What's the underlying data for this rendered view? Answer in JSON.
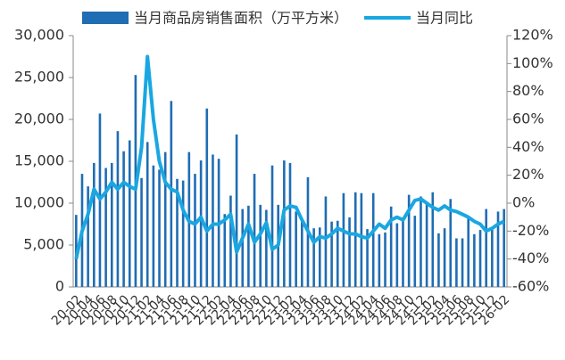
{
  "chart_data": {
    "type": "bar",
    "categories": [
      "20-02",
      null,
      "20-04",
      null,
      "20-06",
      null,
      "20-08",
      null,
      "20-10",
      null,
      "20-12",
      null,
      "21-02",
      null,
      "21-04",
      null,
      "21-06",
      null,
      "21-08",
      null,
      "21-10",
      null,
      "21-12",
      null,
      "22-02",
      null,
      "22-04",
      null,
      "22-06",
      null,
      "22-08",
      null,
      "22-10",
      null,
      "22-12",
      null,
      "23-02",
      null,
      "23-04",
      null,
      "23-06",
      null,
      "23-08",
      null,
      "23-10",
      null,
      "23-12",
      null,
      "24-02",
      null,
      "24-04",
      null,
      "24-06",
      null,
      "24-08",
      null,
      "24-10",
      null,
      "24-12",
      null,
      "25-02",
      null,
      "25-04",
      null,
      "25-06",
      null,
      "25-08",
      null,
      "25-10",
      null,
      "25-12",
      null,
      "26-02"
    ],
    "series": [
      {
        "name": "当月商品房销售面积（万平方米）",
        "type": "bar",
        "color": "#1f6db3",
        "values": [
          8600,
          13500,
          12000,
          14800,
          20700,
          14200,
          14800,
          18600,
          16200,
          17500,
          25300,
          13000,
          17300,
          14500,
          14000,
          16100,
          22200,
          12900,
          12700,
          16100,
          13500,
          15100,
          21300,
          15800,
          15300,
          8700,
          10900,
          18200,
          9300,
          9700,
          13500,
          9800,
          9200,
          14500,
          9800,
          15100,
          14800,
          9000,
          8200,
          13100,
          7000,
          7100,
          10800,
          7800,
          7900,
          11200,
          8300,
          11300,
          11200,
          6900,
          11200,
          6300,
          6500,
          9600,
          7600,
          8100,
          11000,
          8500,
          10800,
          10200,
          11300,
          6400,
          7000,
          10500,
          5800,
          5800,
          8500,
          6300,
          6800,
          9300,
          7000,
          9000,
          9300
        ]
      },
      {
        "name": "当月同比",
        "type": "line",
        "axis": "y2",
        "color": "#1aa7e1",
        "values": [
          -40,
          -20,
          -8,
          10,
          3,
          8,
          15,
          10,
          15,
          12,
          10,
          40,
          105,
          60,
          30,
          15,
          10,
          8,
          -5,
          -13,
          -15,
          -10,
          -20,
          -15,
          -15,
          -12,
          -8,
          -35,
          -25,
          -15,
          -28,
          -22,
          -14,
          -33,
          -30,
          -5,
          -2,
          -3,
          -12,
          -20,
          -28,
          -24,
          -25,
          -22,
          -18,
          -20,
          -22,
          -22,
          -24,
          -25,
          -20,
          -15,
          -18,
          -12,
          -10,
          -12,
          -5,
          2,
          3,
          0,
          -3,
          -5,
          -2,
          -5,
          -6,
          -8,
          -10,
          -13,
          -15,
          -20,
          -18,
          -15,
          -13
        ]
      }
    ],
    "ylim": [
      0,
      30000
    ],
    "yticks": [
      0,
      {
        "value": 5000,
        "label": "5,000"
      },
      {
        "value": 10000,
        "label": "10,000"
      },
      {
        "value": 15000,
        "label": "15,000"
      },
      {
        "value": 20000,
        "label": "20,000"
      },
      {
        "value": 25000,
        "label": "25,000"
      },
      {
        "value": 30000,
        "label": "30,000"
      }
    ],
    "y2lim": [
      -60,
      120
    ],
    "y2ticks": [
      {
        "value": -60,
        "label": "-60%"
      },
      {
        "value": -40,
        "label": "-40%"
      },
      {
        "value": -20,
        "label": "-20%"
      },
      {
        "value": 0,
        "label": "0%"
      },
      {
        "value": 20,
        "label": "20%"
      },
      {
        "value": 40,
        "label": "40%"
      },
      {
        "value": 60,
        "label": "60%"
      },
      {
        "value": 80,
        "label": "80%"
      },
      {
        "value": 100,
        "label": "100%"
      },
      {
        "value": 120,
        "label": "120%"
      }
    ],
    "legend": "top"
  }
}
